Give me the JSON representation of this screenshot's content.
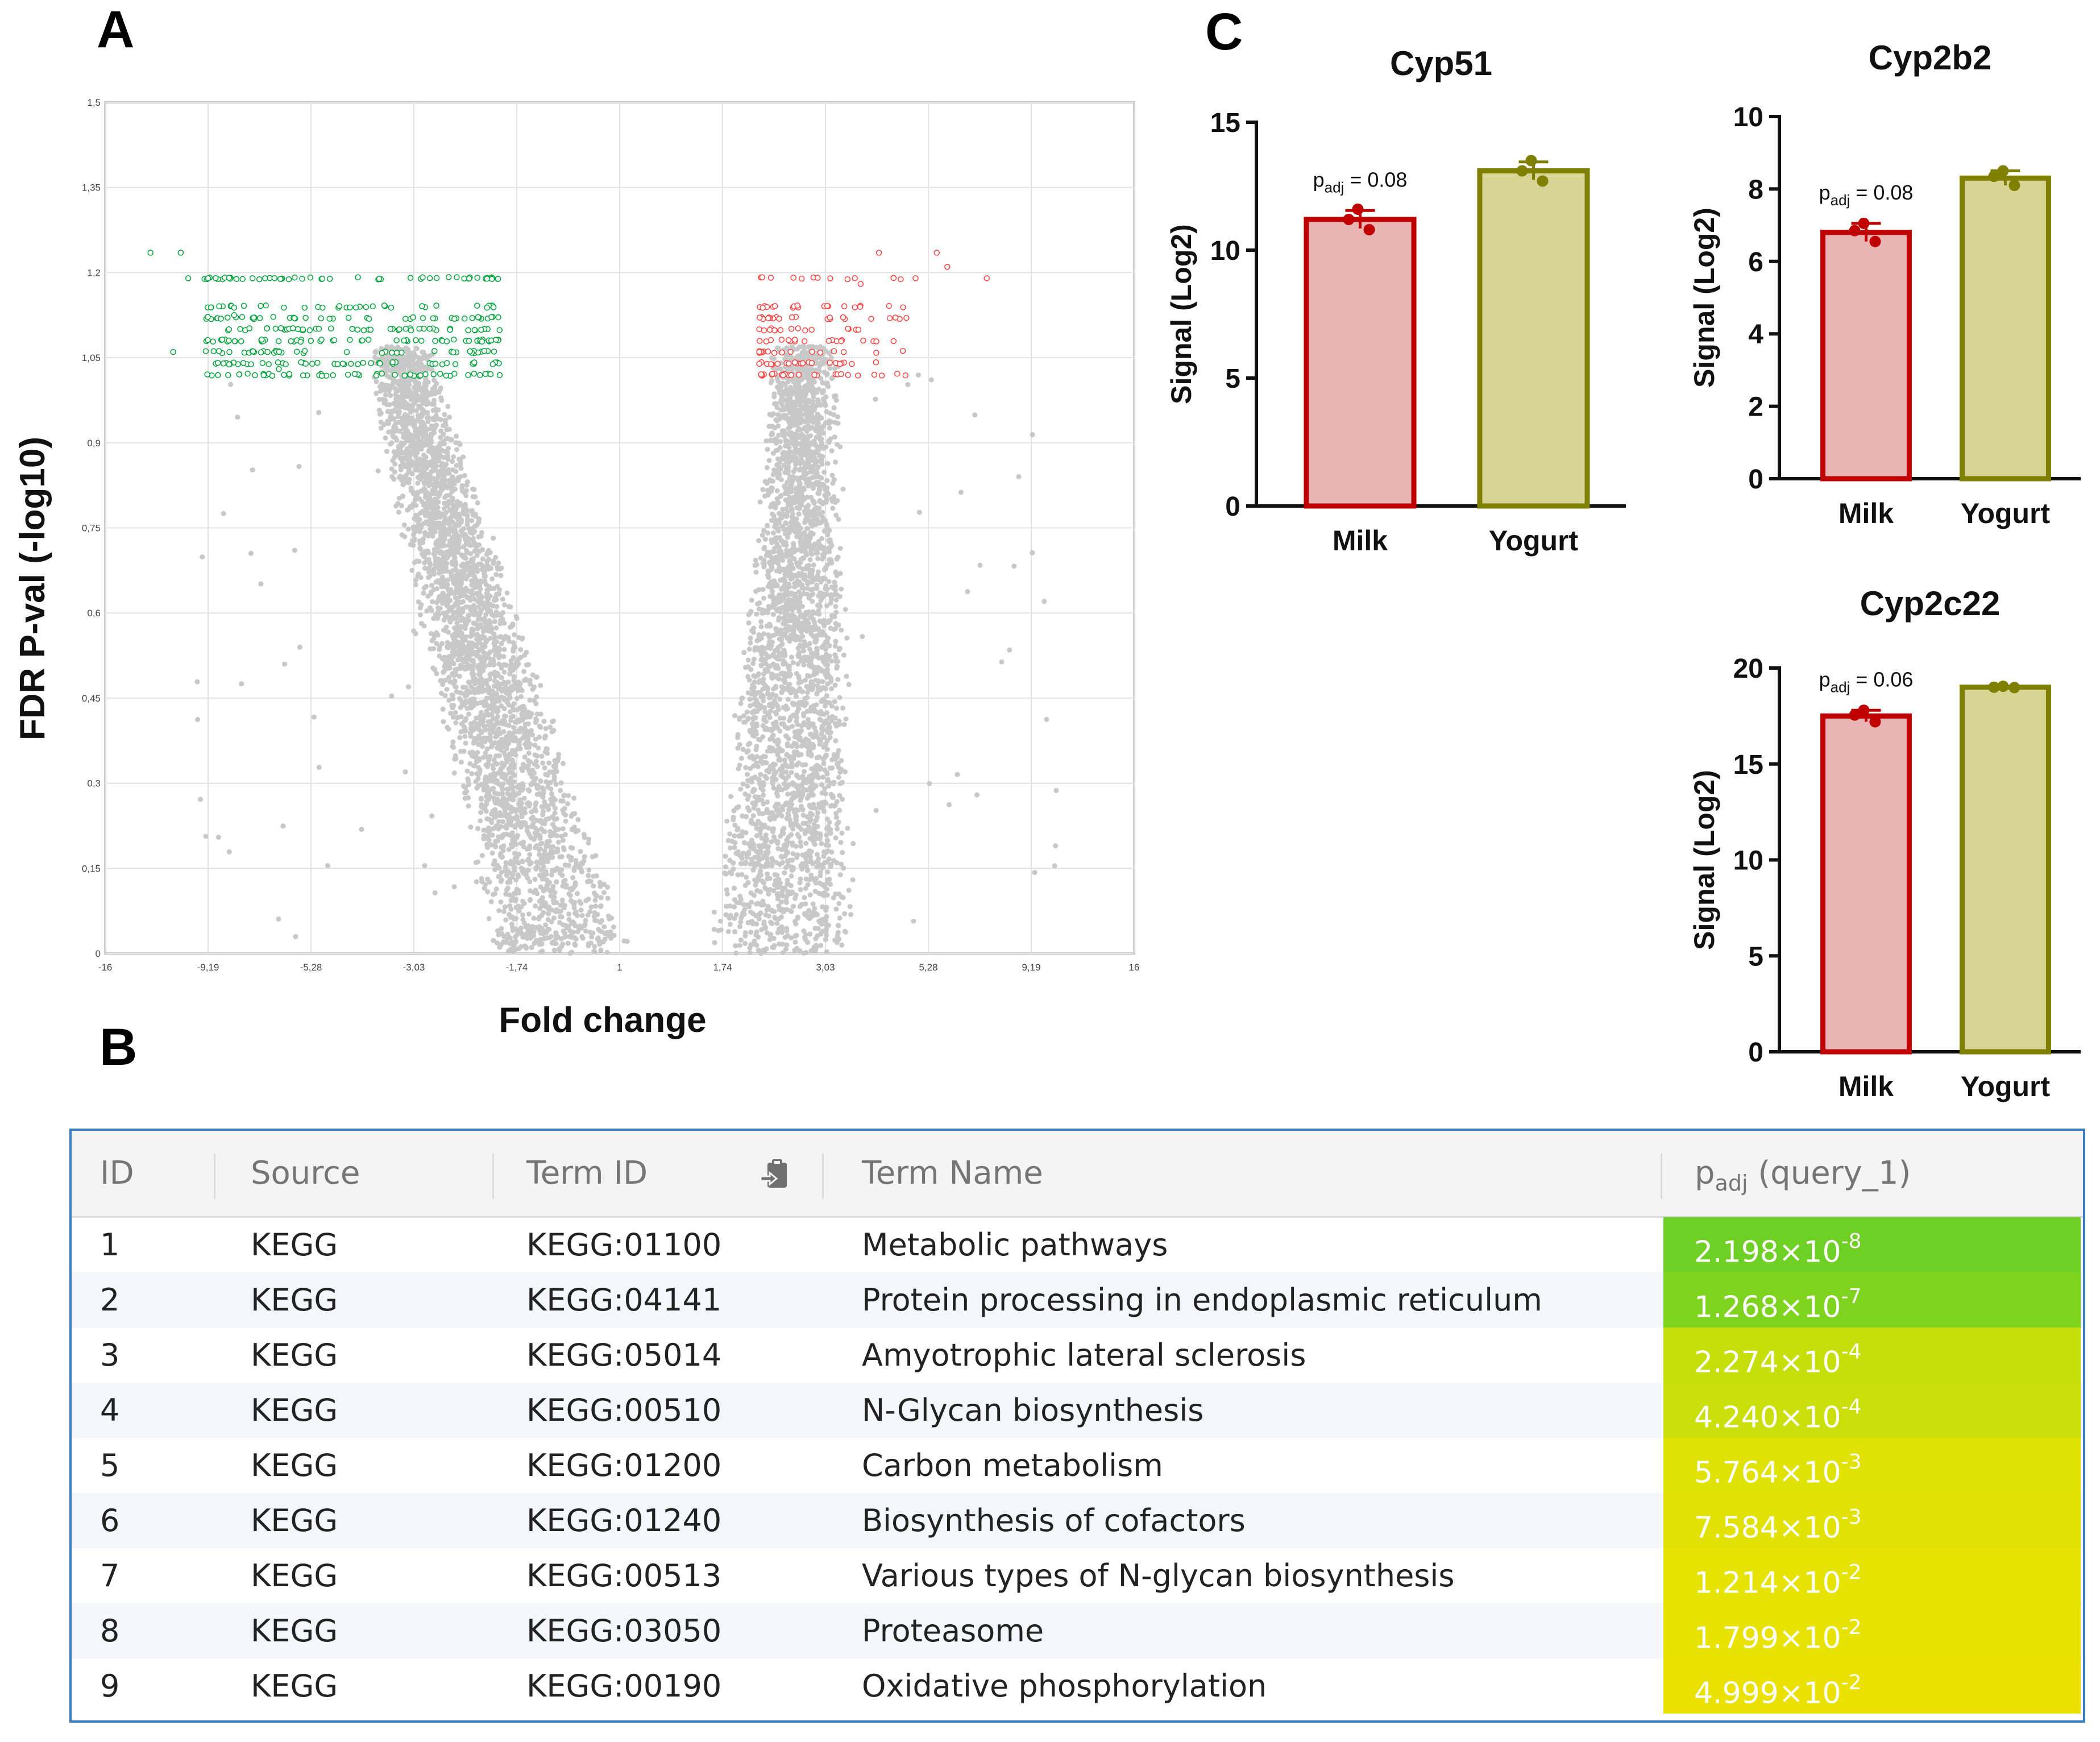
{
  "panels": {
    "a": "A",
    "b": "B",
    "c": "C"
  },
  "volcano": {
    "xlabel": "Fold change",
    "ylabel": "FDR P-val (-log10)",
    "x_ticks": [
      "-16",
      "-9,19",
      "-5,28",
      "-3,03",
      "-1,74",
      "1",
      "1,74",
      "3,03",
      "5,28",
      "9,19",
      "16"
    ],
    "y_ticks": [
      "0",
      "0,15",
      "0,3",
      "0,45",
      "0,6",
      "0,75",
      "0,9",
      "1,05",
      "1,2",
      "1,35",
      "1,5"
    ]
  },
  "table": {
    "headers": {
      "id": "ID",
      "source": "Source",
      "term_id": "Term ID",
      "term_name": "Term Name",
      "p_base": "p",
      "p_sub": "adj",
      "p_suffix": " (query_1)"
    },
    "rows": [
      {
        "id": "1",
        "source": "KEGG",
        "term_id": "KEGG:01100",
        "term_name": "Metabolic pathways",
        "p_mant": "2.198×10",
        "p_exp": "-8",
        "p_value": 2.198e-08,
        "color": "#6ecf24"
      },
      {
        "id": "2",
        "source": "KEGG",
        "term_id": "KEGG:04141",
        "term_name": "Protein processing in endoplasmic reticulum",
        "p_mant": "1.268×10",
        "p_exp": "-7",
        "p_value": 1.268e-07,
        "color": "#7dd31e"
      },
      {
        "id": "3",
        "source": "KEGG",
        "term_id": "KEGG:05014",
        "term_name": "Amyotrophic lateral sclerosis",
        "p_mant": "2.274×10",
        "p_exp": "-4",
        "p_value": 0.0002274,
        "color": "#c6df0a"
      },
      {
        "id": "4",
        "source": "KEGG",
        "term_id": "KEGG:00510",
        "term_name": "N-Glycan biosynthesis",
        "p_mant": "4.240×10",
        "p_exp": "-4",
        "p_value": 0.000424,
        "color": "#cadf0a"
      },
      {
        "id": "5",
        "source": "KEGG",
        "term_id": "KEGG:01200",
        "term_name": "Carbon metabolism",
        "p_mant": "5.764×10",
        "p_exp": "-3",
        "p_value": 0.005764,
        "color": "#dfe203"
      },
      {
        "id": "6",
        "source": "KEGG",
        "term_id": "KEGG:01240",
        "term_name": "Biosynthesis of cofactors",
        "p_mant": "7.584×10",
        "p_exp": "-3",
        "p_value": 0.007584,
        "color": "#e1e203"
      },
      {
        "id": "7",
        "source": "KEGG",
        "term_id": "KEGG:00513",
        "term_name": "Various types of N-glycan biosynthesis",
        "p_mant": "1.214×10",
        "p_exp": "-2",
        "p_value": 0.01214,
        "color": "#e6e201"
      },
      {
        "id": "8",
        "source": "KEGG",
        "term_id": "KEGG:03050",
        "term_name": "Proteasome",
        "p_mant": "1.799×10",
        "p_exp": "-2",
        "p_value": 0.01799,
        "color": "#e8e201"
      },
      {
        "id": "9",
        "source": "KEGG",
        "term_id": "KEGG:00190",
        "term_name": "Oxidative phosphorylation",
        "p_mant": "4.999×10",
        "p_exp": "-2",
        "p_value": 0.04999,
        "color": "#ebe101"
      }
    ]
  },
  "colors": {
    "milk_fill": "#e8b4b4",
    "milk_stroke": "#c00000",
    "yogurt_fill": "#d8d594",
    "yogurt_stroke": "#7f7f00",
    "up": "#ff4040",
    "down": "#00a33a",
    "ns": "#c8c8c8"
  },
  "chart_data": [
    {
      "type": "scatter",
      "name": "volcano",
      "title": "",
      "xlabel": "Fold change",
      "ylabel": "FDR P-val (-log10)",
      "x_ticks": [
        -16,
        -9.19,
        -5.28,
        -3.03,
        -1.74,
        1,
        1.74,
        3.03,
        5.28,
        9.19,
        16
      ],
      "ylim": [
        0,
        1.5
      ],
      "y_ticks": [
        0,
        0.15,
        0.3,
        0.45,
        0.6,
        0.75,
        0.9,
        1.05,
        1.2,
        1.35,
        1.5
      ],
      "series": [
        {
          "name": "not significant",
          "color": "#c8c8c8",
          "description": "thousands of grey points forming a V shape"
        },
        {
          "name": "downregulated",
          "color": "#00a33a",
          "x_range": [
            -13,
            -1.9
          ],
          "y_range": [
            1.02,
            1.24
          ]
        },
        {
          "name": "upregulated",
          "color": "#ff4040",
          "x_range": [
            2.2,
            7.5
          ],
          "y_range": [
            1.02,
            1.24
          ]
        }
      ]
    },
    {
      "type": "bar",
      "name": "cyp51",
      "title": "Cyp51",
      "categories": [
        "Milk",
        "Yogurt"
      ],
      "values": [
        11.2,
        13.1
      ],
      "errors": [
        0.35,
        0.35
      ],
      "points": [
        [
          11.6,
          11.2,
          10.8
        ],
        [
          13.5,
          13.1,
          12.7
        ]
      ],
      "ylabel": "Signal (Log2)",
      "ylim": [
        0,
        15
      ],
      "y_ticks": [
        0,
        5,
        10,
        15
      ],
      "annotation": {
        "base": "p",
        "sub": "adj",
        "rest": " = 0.08"
      }
    },
    {
      "type": "bar",
      "name": "cyp2b2",
      "title": "Cyp2b2",
      "categories": [
        "Milk",
        "Yogurt"
      ],
      "values": [
        6.8,
        8.3
      ],
      "errors": [
        0.25,
        0.2
      ],
      "points": [
        [
          7.05,
          6.85,
          6.55
        ],
        [
          8.5,
          8.35,
          8.1
        ]
      ],
      "ylabel": "Signal (Log2)",
      "ylim": [
        0,
        10
      ],
      "y_ticks": [
        0,
        2,
        4,
        6,
        8,
        10
      ],
      "annotation": {
        "base": "p",
        "sub": "adj",
        "rest": " = 0.08"
      }
    },
    {
      "type": "bar",
      "name": "cyp2c22",
      "title": "Cyp2c22",
      "categories": [
        "Milk",
        "Yogurt"
      ],
      "values": [
        17.5,
        19.0
      ],
      "errors": [
        0.3,
        0.05
      ],
      "points": [
        [
          17.8,
          17.55,
          17.2
        ],
        [
          19.05,
          19.0,
          18.98
        ]
      ],
      "ylabel": "Signal (Log2)",
      "ylim": [
        0,
        20
      ],
      "y_ticks": [
        0,
        5,
        10,
        15,
        20
      ],
      "annotation": {
        "base": "p",
        "sub": "adj",
        "rest": " = 0.06"
      }
    }
  ]
}
